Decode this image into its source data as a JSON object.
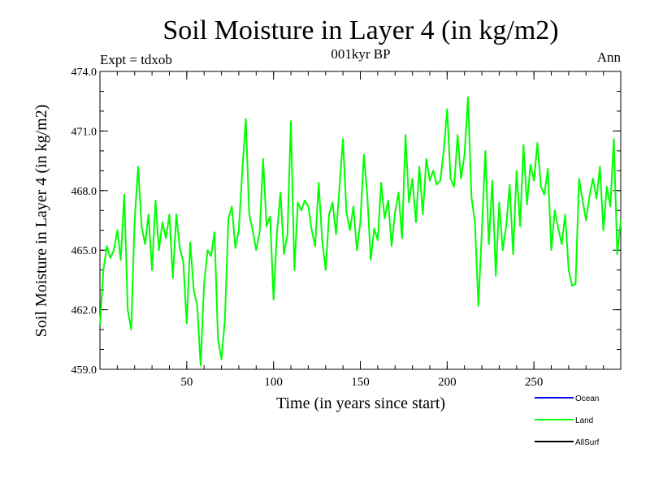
{
  "chart_data": {
    "type": "line",
    "title": "Soil Moisture in Layer 4 (in kg/m2)",
    "subtitle": "001kyr BP",
    "left_label": "Expt = tdxob",
    "right_label": "Ann",
    "xlabel": "Time (in years since start)",
    "ylabel": "Soil Moisture in Layer 4 (in kg/m2)",
    "xlim": [
      0,
      300
    ],
    "ylim": [
      459.0,
      474.0
    ],
    "x_ticks": [
      50,
      100,
      150,
      200,
      250
    ],
    "x_tick_labels": [
      "50",
      "100",
      "150",
      "200",
      "250"
    ],
    "y_ticks": [
      459.0,
      462.0,
      465.0,
      468.0,
      471.0,
      474.0
    ],
    "y_tick_labels": [
      "459.0",
      "462.0",
      "465.0",
      "468.0",
      "471.0",
      "474.0"
    ],
    "legend_position": "bottom-right",
    "grid": false,
    "series": [
      {
        "name": "Ocean",
        "color": "#0000ff",
        "x": [],
        "values": []
      },
      {
        "name": "Land",
        "color": "#00ff00",
        "x": [
          0,
          2,
          4,
          6,
          8,
          10,
          12,
          14,
          16,
          18,
          20,
          22,
          24,
          26,
          28,
          30,
          32,
          34,
          36,
          38,
          40,
          42,
          44,
          46,
          48,
          50,
          52,
          54,
          56,
          58,
          60,
          62,
          64,
          66,
          68,
          70,
          72,
          74,
          76,
          78,
          80,
          82,
          84,
          86,
          88,
          90,
          92,
          94,
          96,
          98,
          100,
          102,
          104,
          106,
          108,
          110,
          112,
          114,
          116,
          118,
          120,
          122,
          124,
          126,
          128,
          130,
          132,
          134,
          136,
          138,
          140,
          142,
          144,
          146,
          148,
          150,
          152,
          154,
          156,
          158,
          160,
          162,
          164,
          166,
          168,
          170,
          172,
          174,
          176,
          178,
          180,
          182,
          184,
          186,
          188,
          190,
          192,
          194,
          196,
          198,
          200,
          202,
          204,
          206,
          208,
          210,
          212,
          214,
          216,
          218,
          220,
          222,
          224,
          226,
          228,
          230,
          232,
          234,
          236,
          238,
          240,
          242,
          244,
          246,
          248,
          250,
          252,
          254,
          256,
          258,
          260,
          262,
          264,
          266,
          268,
          270,
          272,
          274,
          276,
          278,
          280,
          282,
          284,
          286,
          288,
          290,
          292,
          294,
          296,
          298,
          300
        ],
        "values": [
          461.2,
          464.0,
          465.2,
          464.6,
          465.0,
          466.0,
          464.5,
          467.8,
          462.0,
          461.0,
          466.5,
          469.2,
          466.2,
          465.3,
          466.8,
          464.0,
          467.5,
          465.0,
          466.4,
          465.6,
          466.8,
          463.6,
          466.8,
          465.1,
          464.4,
          461.3,
          465.4,
          463.0,
          462.2,
          459.2,
          463.3,
          465.0,
          464.7,
          465.9,
          460.5,
          459.5,
          461.5,
          466.6,
          467.2,
          465.1,
          466.0,
          469.0,
          471.6,
          466.8,
          466.0,
          465.0,
          465.9,
          469.6,
          466.2,
          466.7,
          462.5,
          465.9,
          467.9,
          464.8,
          465.8,
          471.5,
          464.0,
          467.4,
          467.0,
          467.5,
          467.2,
          466.0,
          465.2,
          468.4,
          465.5,
          464.0,
          466.8,
          467.4,
          465.8,
          468.2,
          470.6,
          466.9,
          466.0,
          467.2,
          465.0,
          466.4,
          469.8,
          467.8,
          464.5,
          466.1,
          465.5,
          468.4,
          466.6,
          467.5,
          465.2,
          466.9,
          467.9,
          465.6,
          470.8,
          467.4,
          468.6,
          466.4,
          469.2,
          466.8,
          469.6,
          468.5,
          469.0,
          468.3,
          468.5,
          470.0,
          472.1,
          468.6,
          468.2,
          470.8,
          468.6,
          469.8,
          472.7,
          467.7,
          466.4,
          462.2,
          466.0,
          470.0,
          465.3,
          468.5,
          463.7,
          467.4,
          465.0,
          466.2,
          468.3,
          464.8,
          469.0,
          466.2,
          470.3,
          467.3,
          469.3,
          468.5,
          470.4,
          468.2,
          467.8,
          469.1,
          465.0,
          467.0,
          466.1,
          465.3,
          466.8,
          464.0,
          463.2,
          463.3,
          468.6,
          467.5,
          466.5,
          467.7,
          468.6,
          467.6,
          469.2,
          466.0,
          468.2,
          467.2,
          470.6,
          464.8,
          466.5
        ]
      },
      {
        "name": "AllSurf",
        "color": "#000000",
        "x": [],
        "values": []
      }
    ]
  }
}
